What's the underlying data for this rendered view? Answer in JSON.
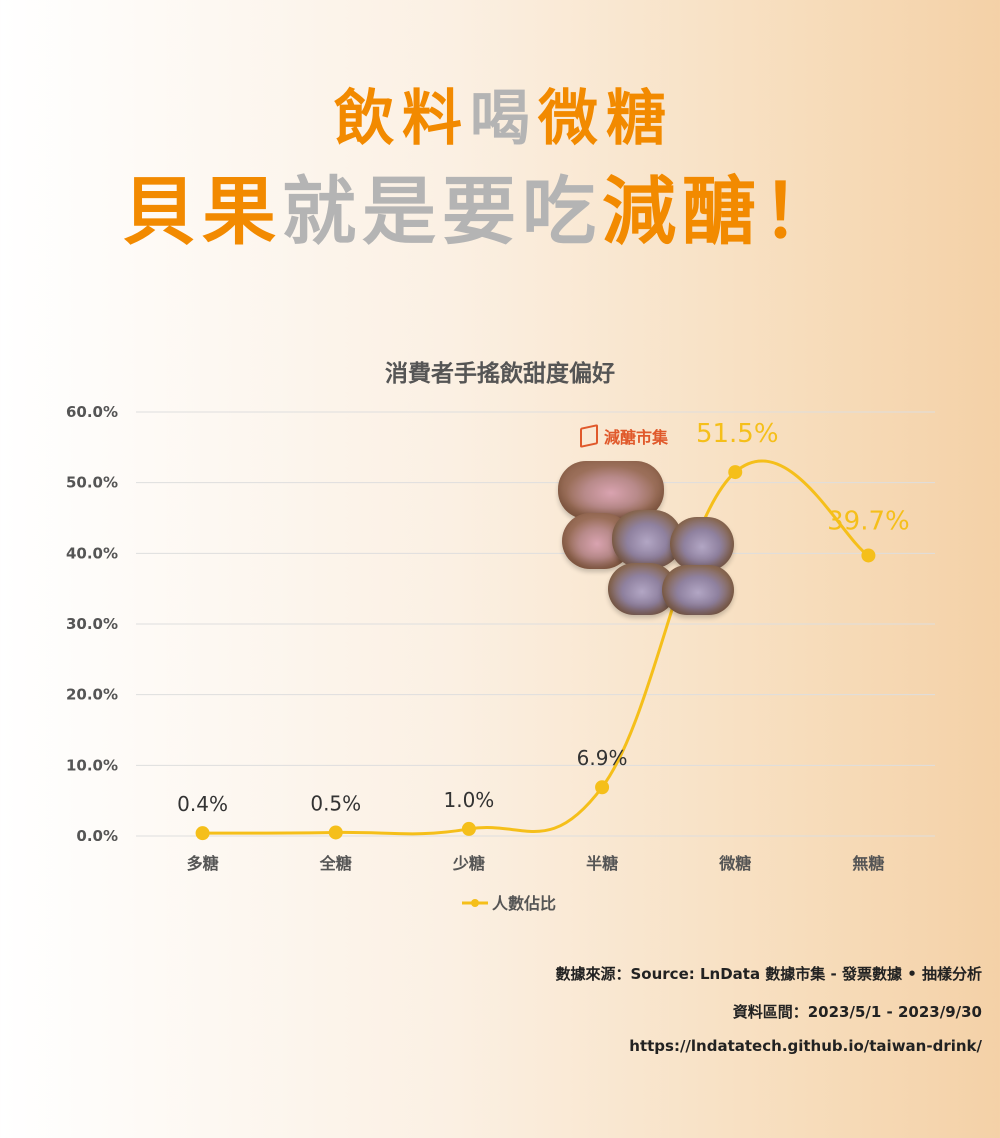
{
  "headline": {
    "line1": [
      {
        "text": "飲料",
        "color": "orange"
      },
      {
        "text": "喝",
        "color": "grey"
      },
      {
        "text": "微糖",
        "color": "orange"
      }
    ],
    "line2": [
      {
        "text": "貝果",
        "color": "orange"
      },
      {
        "text": "就是要吃",
        "color": "grey"
      },
      {
        "text": "減醣！",
        "color": "orange"
      }
    ]
  },
  "logo": {
    "text": "減醣市集",
    "icon": "brand-logo-icon"
  },
  "colors": {
    "accent": "#f28a00",
    "line": "#f5bf1a",
    "muted": "#b4b4b4",
    "logo": "#e0592b"
  },
  "chart_data": {
    "type": "line",
    "title": "消費者手搖飲甜度偏好",
    "categories": [
      "多糖",
      "全糖",
      "少糖",
      "半糖",
      "微糖",
      "無糖"
    ],
    "series": [
      {
        "name": "人數佔比",
        "values": [
          0.4,
          0.5,
          1.0,
          6.9,
          51.5,
          39.7
        ],
        "color": "#f5bf1a"
      }
    ],
    "data_labels": [
      "0.4%",
      "0.5%",
      "1.0%",
      "6.9%",
      "51.5%",
      "39.7%"
    ],
    "y_ticks": [
      "0.0%",
      "10.0%",
      "20.0%",
      "30.0%",
      "40.0%",
      "50.0%",
      "60.0%"
    ],
    "ylim": [
      0,
      60
    ],
    "grid": true,
    "smooth": true,
    "legend_position": "bottom"
  },
  "footer": {
    "source": "數據來源：Source: LnData 數據市集 - 發票數據 • 抽樣分析",
    "period": "資料區間：2023/5/1 - 2023/9/30",
    "url": "https://lndatatech.github.io/taiwan-drink/"
  }
}
